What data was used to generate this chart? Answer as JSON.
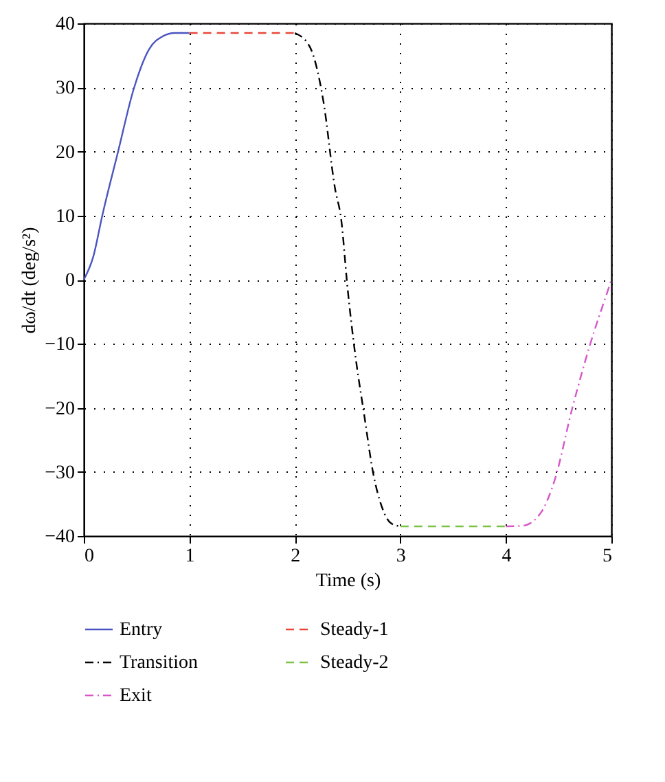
{
  "chart_data": {
    "type": "line",
    "xlabel": "Time (s)",
    "ylabel": "dω/dt (deg/s²)",
    "xlim": [
      0,
      5
    ],
    "ylim": [
      -40,
      40
    ],
    "xticks": [
      0,
      1,
      2,
      3,
      4,
      5
    ],
    "yticks": [
      -40,
      -30,
      -20,
      -10,
      0,
      10,
      20,
      30,
      40
    ],
    "grid": true,
    "legend": "bottom",
    "series": [
      {
        "name": "Entry",
        "color": "#4a55c0",
        "line_style": "solid",
        "x": [
          0,
          0.09,
          0.175,
          0.325,
          0.47,
          0.62,
          0.75,
          0.86,
          1
        ],
        "values": [
          0,
          3.6,
          10,
          20,
          29.6,
          36,
          38,
          38.5,
          38.5
        ]
      },
      {
        "name": "Steady-1",
        "color": "#e8473a",
        "line_style": "dashed",
        "x": [
          1,
          2
        ],
        "values": [
          38.5,
          38.5
        ]
      },
      {
        "name": "Transition",
        "color": "#000000",
        "line_style": "dashdot",
        "x": [
          2,
          2.14,
          2.27,
          2.38,
          2.44,
          2.5,
          2.57,
          2.66,
          2.74,
          2.83,
          2.91,
          3
        ],
        "values": [
          38.5,
          36.4,
          27.9,
          14.3,
          9.3,
          -1.4,
          -11.4,
          -21.4,
          -30,
          -35.7,
          -38,
          -38.5
        ]
      },
      {
        "name": "Steady-2",
        "color": "#7cc242",
        "line_style": "dashed",
        "x": [
          3,
          4
        ],
        "values": [
          -38.5,
          -38.5
        ]
      },
      {
        "name": "Exit",
        "color": "#d656c8",
        "line_style": "dashdot",
        "x": [
          4,
          4.16,
          4.33,
          4.46,
          4.63,
          4.8,
          4.98,
          5
        ],
        "values": [
          -38.5,
          -38.4,
          -36.4,
          -31.4,
          -20,
          -10,
          -1,
          0
        ]
      }
    ]
  }
}
